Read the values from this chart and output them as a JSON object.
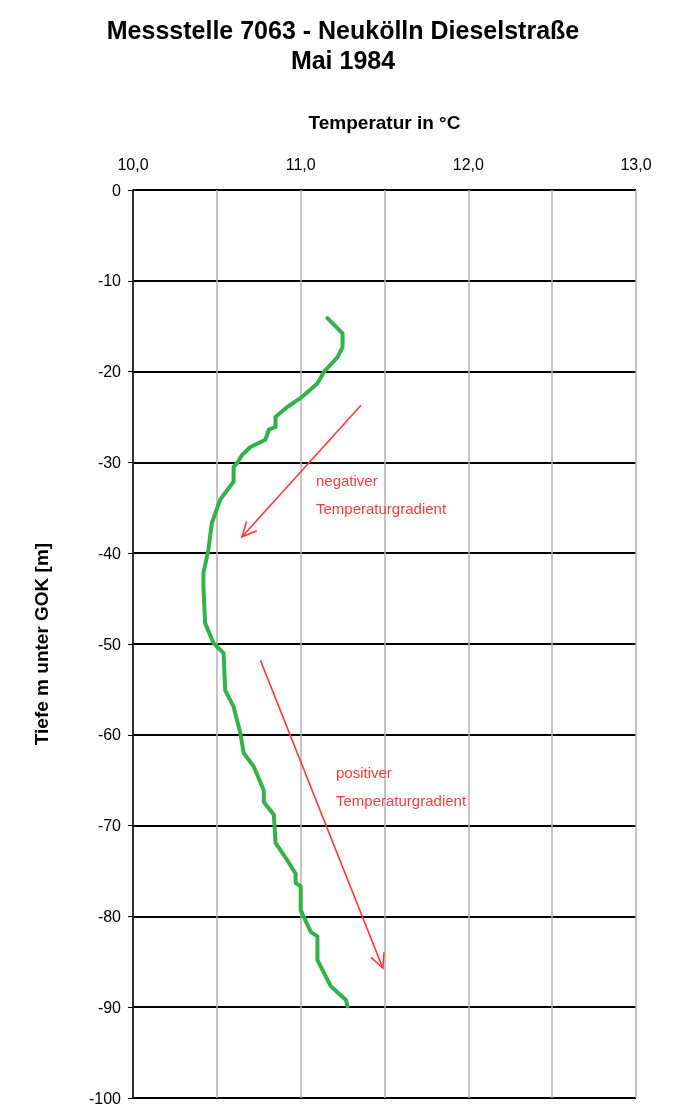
{
  "chart_data": {
    "type": "line",
    "title": "Messstelle 7063 - Neukölln Dieselstraße\nMai 1984",
    "xlabel": "Temperatur in °C",
    "ylabel": "Tiefe m unter GOK [m]",
    "xlim": [
      10,
      13
    ],
    "xticks": [
      {
        "value": 10,
        "label": "10,0"
      },
      {
        "value": 10.5,
        "label": null
      },
      {
        "value": 11,
        "label": "11,0"
      },
      {
        "value": 11.5,
        "label": null
      },
      {
        "value": 12,
        "label": "12,0"
      },
      {
        "value": 12.5,
        "label": null
      },
      {
        "value": 13,
        "label": "13,0"
      }
    ],
    "ylim": [
      -100,
      0
    ],
    "yticks": [
      -100,
      -90,
      -80,
      -70,
      -60,
      -50,
      -40,
      -30,
      -20,
      -10,
      0
    ],
    "grid": true,
    "marker": "none",
    "line_style": "solid",
    "series": [
      {
        "color": "#33b24a",
        "x": [
          11.16,
          11.25,
          11.25,
          11.22,
          11.14,
          11.1,
          11.0,
          10.92,
          10.85,
          10.85,
          10.81,
          10.79,
          10.7,
          10.65,
          10.62,
          10.6,
          10.6,
          10.52,
          10.47,
          10.45,
          10.42,
          10.42,
          10.43,
          10.48,
          10.54,
          10.55,
          10.6,
          10.64,
          10.66,
          10.72,
          10.78,
          10.78,
          10.84,
          10.85,
          10.92,
          10.97,
          10.97,
          11.0,
          11.0,
          11.06,
          11.1,
          11.1,
          11.18,
          11.27,
          11.28
        ],
        "values": [
          -14.1,
          -15.8,
          -17.3,
          -18.4,
          -20.0,
          -21.3,
          -22.9,
          -23.9,
          -25.0,
          -26.1,
          -26.4,
          -27.5,
          -28.3,
          -29.2,
          -30.1,
          -30.5,
          -32.1,
          -34.1,
          -36.7,
          -39.6,
          -42.2,
          -43.7,
          -47.7,
          -49.9,
          -51.0,
          -55.1,
          -56.9,
          -59.8,
          -62.0,
          -63.5,
          -66.1,
          -67.4,
          -68.8,
          -71.9,
          -73.8,
          -75.3,
          -76.3,
          -76.7,
          -79.3,
          -81.7,
          -82.2,
          -84.8,
          -87.7,
          -89.2,
          -89.9
        ]
      }
    ],
    "annotations": [
      "negativer\nTemperaturgradient",
      "positiver\nTemperaturgradient"
    ]
  }
}
